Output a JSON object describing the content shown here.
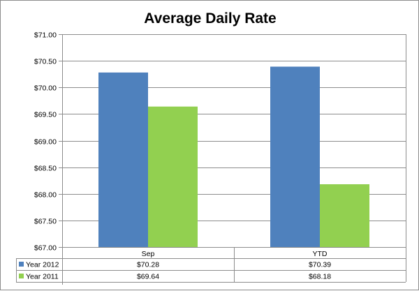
{
  "chart_data": {
    "type": "bar",
    "title": "Average Daily Rate",
    "categories": [
      "Sep",
      "YTD"
    ],
    "series": [
      {
        "name": "Year 2012",
        "values": [
          70.28,
          70.39
        ],
        "color": "#4f81bd"
      },
      {
        "name": "Year 2011",
        "values": [
          69.64,
          68.18
        ],
        "color": "#92d050"
      }
    ],
    "ylim": [
      67.0,
      71.0
    ],
    "y_ticks": [
      "$67.00",
      "$67.50",
      "$68.00",
      "$68.50",
      "$69.00",
      "$69.50",
      "$70.00",
      "$70.50",
      "$71.00"
    ],
    "y_tick_values": [
      67.0,
      67.5,
      68.0,
      68.5,
      69.0,
      69.5,
      70.0,
      70.5,
      71.0
    ],
    "data_table": [
      {
        "series": "Year 2012",
        "values": [
          "$70.28",
          "$70.39"
        ]
      },
      {
        "series": "Year 2011",
        "values": [
          "$69.64",
          "$68.18"
        ]
      }
    ],
    "grid": true,
    "legend": "data-table"
  }
}
